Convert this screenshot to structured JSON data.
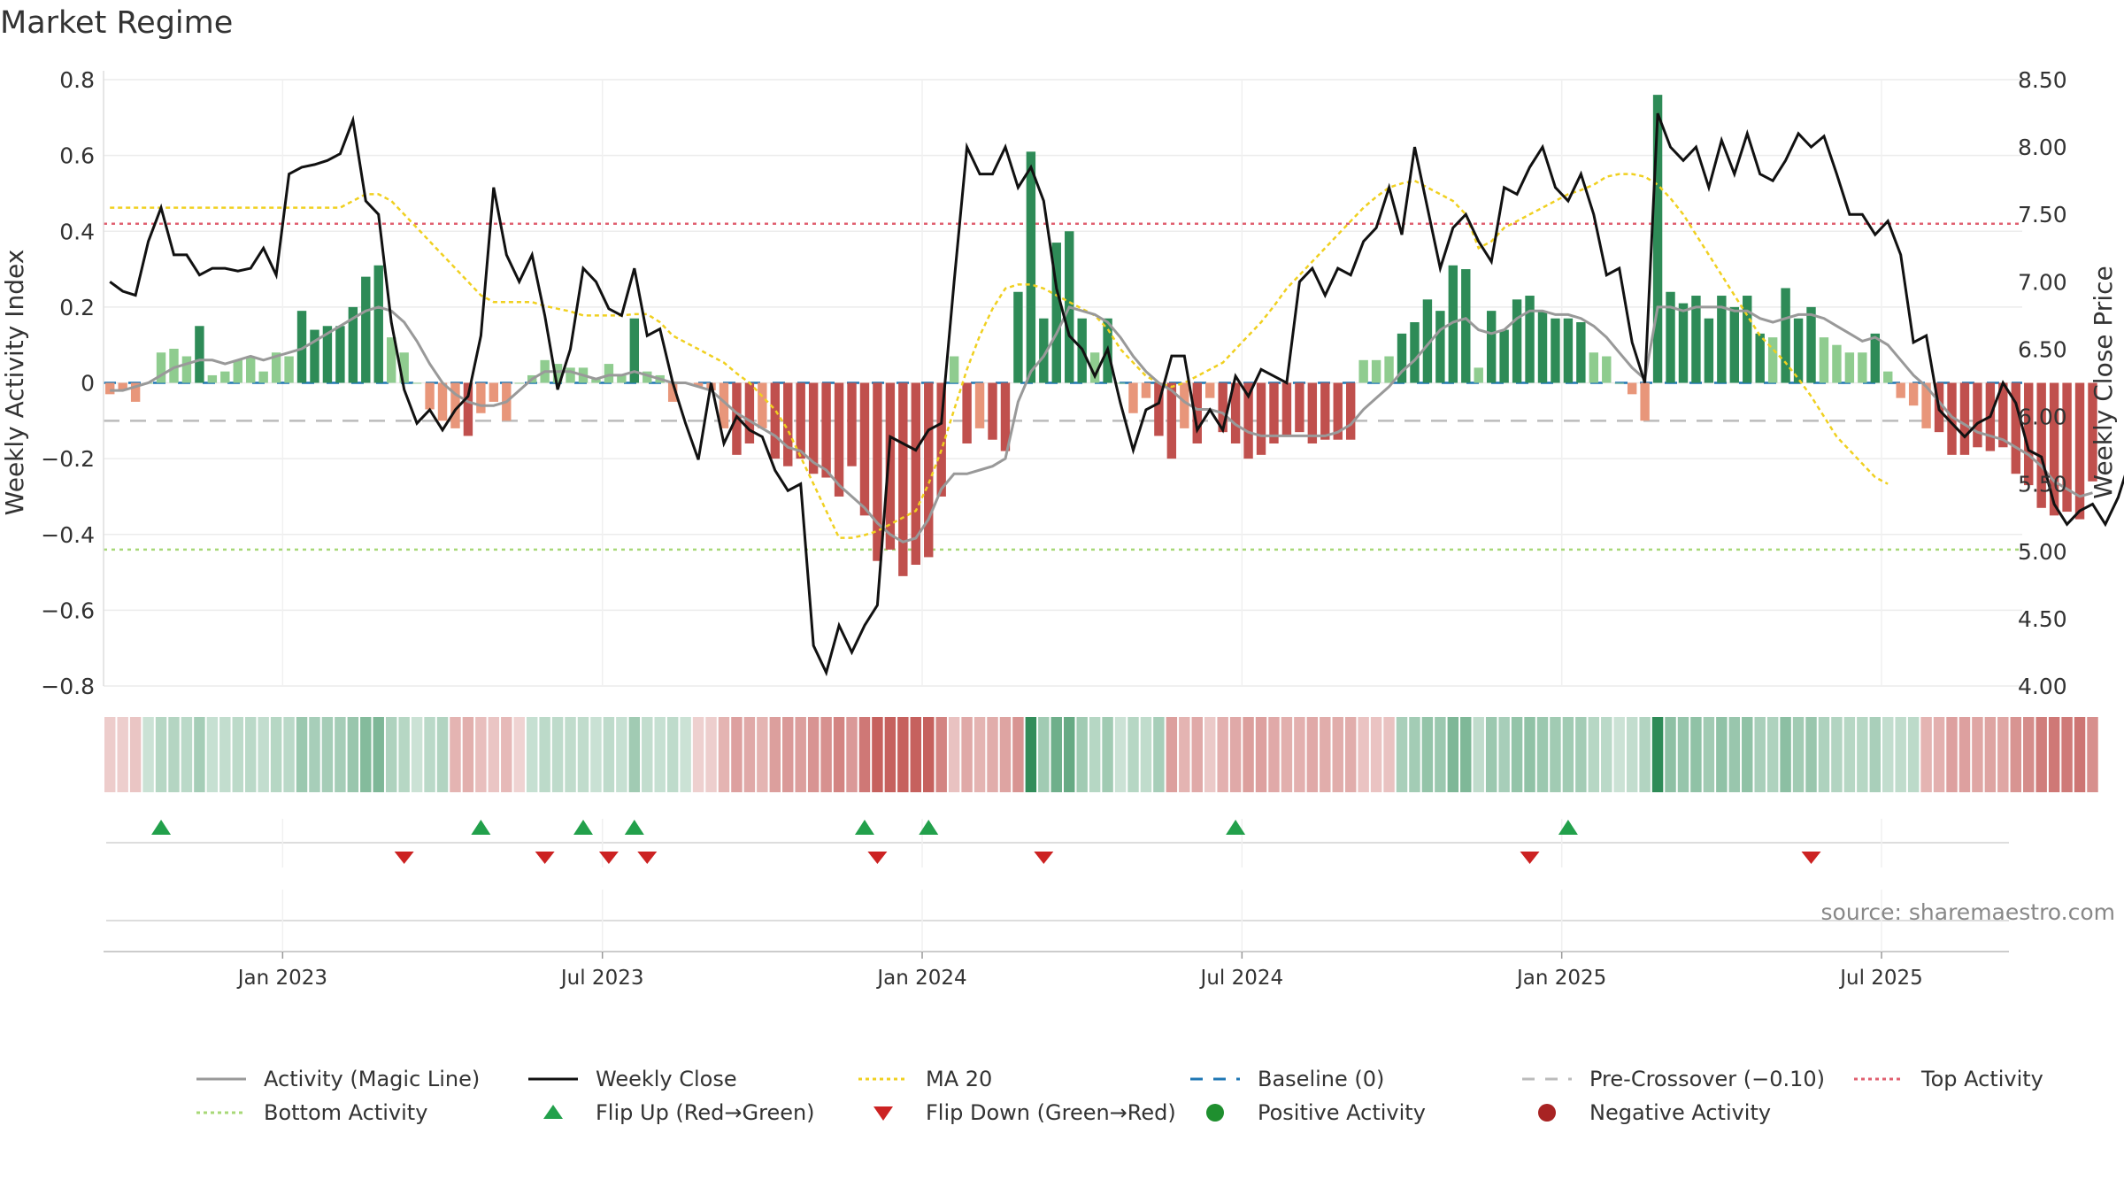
{
  "title": "Market Regime",
  "source": "source: sharemaestro.com",
  "colors": {
    "pos_dark": "#2e8b57",
    "pos_light": "#8fcc8f",
    "neg_dark": "#c0504d",
    "neg_light": "#e8967a",
    "close": "#111111",
    "magic": "#999999",
    "ma": "#f0d020",
    "baseline": "#1f77b4",
    "precross": "#bbbbbb",
    "top": "#e06070",
    "bottom": "#a8d878",
    "flip_up": "#22a04b",
    "flip_down": "#cc2222"
  },
  "legend": [
    {
      "label": "Activity (Magic Line)",
      "kind": "solid-gray",
      "icon": "line-icon"
    },
    {
      "label": "Weekly Close",
      "kind": "solid-black",
      "icon": "line-icon"
    },
    {
      "label": "MA 20",
      "kind": "dotted-yellow",
      "icon": "line-icon"
    },
    {
      "label": "Baseline (0)",
      "kind": "dashed-blue",
      "icon": "line-icon"
    },
    {
      "label": "Pre-Crossover (−0.10)",
      "kind": "dashed-gray",
      "icon": "line-icon"
    },
    {
      "label": "Top Activity",
      "kind": "dotted-red",
      "icon": "line-icon"
    },
    {
      "label": "Bottom Activity",
      "kind": "dotted-green",
      "icon": "line-icon"
    },
    {
      "label": "Flip Up (Red→Green)",
      "kind": "tri-up",
      "icon": "triangle-up-icon"
    },
    {
      "label": "Flip Down (Green→Red)",
      "kind": "tri-down",
      "icon": "triangle-down-icon"
    },
    {
      "label": "Positive Activity",
      "kind": "dot-green",
      "icon": "circle-icon"
    },
    {
      "label": "Negative Activity",
      "kind": "dot-red",
      "icon": "circle-icon"
    }
  ],
  "chart_data": {
    "type": "bar",
    "title": "Market Regime",
    "ylabel_left": "Weekly Activity Index",
    "ylabel_right": "Weekly Close Price",
    "y_left_range": [
      -0.8,
      0.8
    ],
    "y_right_range": [
      4.0,
      8.5
    ],
    "y_left_ticks": [
      "−0.8",
      "−0.6",
      "−0.4",
      "−0.2",
      "0",
      "0.2",
      "0.4",
      "0.6",
      "0.8"
    ],
    "y_right_ticks": [
      "4.00",
      "4.50",
      "5.00",
      "5.50",
      "6.00",
      "6.50",
      "7.00",
      "7.50",
      "8.00",
      "8.50"
    ],
    "x_ticks": [
      "Jan 2023",
      "Jul 2023",
      "Jan 2024",
      "Jul 2024",
      "Jan 2025",
      "Jul 2025"
    ],
    "x_range_weeks": [
      0,
      150
    ],
    "x_tick_weeks": [
      14,
      39,
      64,
      89,
      114,
      139
    ],
    "grid": true,
    "reference_lines": {
      "baseline": 0,
      "pre_crossover": -0.1,
      "top_activity": 0.42,
      "bottom_activity": -0.44
    },
    "activity_index": [
      -0.03,
      -0.02,
      -0.05,
      0,
      0.08,
      0.09,
      0.07,
      0.15,
      0.02,
      0.03,
      0.06,
      0.07,
      0.03,
      0.08,
      0.07,
      0.19,
      0.14,
      0.15,
      0.15,
      0.2,
      0.28,
      0.31,
      0.12,
      0.08,
      0,
      -0.07,
      -0.1,
      -0.12,
      -0.14,
      -0.08,
      -0.05,
      -0.1,
      0,
      0.02,
      0.06,
      0.05,
      0.04,
      0.04,
      0.01,
      0.05,
      0.02,
      0.17,
      0.03,
      0.02,
      -0.05,
      0,
      -0.01,
      -0.02,
      -0.12,
      -0.19,
      -0.16,
      -0.12,
      -0.2,
      -0.22,
      -0.2,
      -0.24,
      -0.25,
      -0.3,
      -0.22,
      -0.35,
      -0.47,
      -0.44,
      -0.51,
      -0.48,
      -0.46,
      -0.3,
      0.07,
      -0.16,
      -0.12,
      -0.15,
      -0.18,
      0.24,
      0.61,
      0.17,
      0.37,
      0.4,
      0.17,
      0.08,
      0.17,
      0,
      -0.08,
      -0.04,
      -0.14,
      -0.2,
      -0.12,
      -0.16,
      -0.04,
      -0.13,
      -0.16,
      -0.2,
      -0.19,
      -0.16,
      -0.14,
      -0.13,
      -0.16,
      -0.15,
      -0.15,
      -0.15,
      0.06,
      0.06,
      0.07,
      0.13,
      0.16,
      0.22,
      0.19,
      0.31,
      0.3,
      0.04,
      0.19,
      0.14,
      0.22,
      0.23,
      0.19,
      0.17,
      0.17,
      0.16,
      0.08,
      0.07,
      0,
      -0.03,
      -0.1,
      0.76,
      0.24,
      0.21,
      0.23,
      0.17,
      0.23,
      0.2,
      0.23,
      0.13,
      0.12,
      0.25,
      0.17,
      0.2,
      0.12,
      0.1,
      0.08,
      0.08,
      0.13,
      0.03,
      -0.04,
      -0.06,
      -0.12,
      -0.13,
      -0.19,
      -0.19,
      -0.17,
      -0.18,
      -0.17,
      -0.24,
      -0.27,
      -0.33,
      -0.35,
      -0.34,
      -0.36,
      -0.26
    ],
    "weekly_close": [
      7,
      6.93,
      6.9,
      7.3,
      7.55,
      7.2,
      7.2,
      7.05,
      7.1,
      7.1,
      7.08,
      7.1,
      7.25,
      7.05,
      7.8,
      7.85,
      7.87,
      7.9,
      7.95,
      8.2,
      7.6,
      7.5,
      6.7,
      6.2,
      5.95,
      6.05,
      5.9,
      6.05,
      6.15,
      6.6,
      7.7,
      7.2,
      7.0,
      7.2,
      6.75,
      6.2,
      6.5,
      7.1,
      7.0,
      6.8,
      6.75,
      7.1,
      6.6,
      6.65,
      6.25,
      5.95,
      5.68,
      6.25,
      5.8,
      6.0,
      5.9,
      5.85,
      5.6,
      5.45,
      5.5,
      4.3,
      4.1,
      4.45,
      4.25,
      4.45,
      4.6,
      5.85,
      5.8,
      5.75,
      5.9,
      5.95,
      7.0,
      8.0,
      7.8,
      7.8,
      8.0,
      7.7,
      7.85,
      7.6,
      6.95,
      6.6,
      6.5,
      6.3,
      6.5,
      6.1,
      5.75,
      6.05,
      6.1,
      6.45,
      6.45,
      5.9,
      6.05,
      5.9,
      6.3,
      6.15,
      6.35,
      6.3,
      6.25,
      7.0,
      7.1,
      6.9,
      7.1,
      7.05,
      7.3,
      7.4,
      7.7,
      7.35,
      8.0,
      7.55,
      7.1,
      7.4,
      7.5,
      7.3,
      7.15,
      7.7,
      7.65,
      7.85,
      8.0,
      7.7,
      7.6,
      7.8,
      7.5,
      7.05,
      7.1,
      6.55,
      6.25,
      8.25,
      8.0,
      7.9,
      8.0,
      7.7,
      8.05,
      7.8,
      8.1,
      7.8,
      7.75,
      7.9,
      8.1,
      8.0,
      8.08,
      7.8,
      7.5,
      7.5,
      7.35,
      7.45,
      7.2,
      6.55,
      6.6,
      6.05,
      5.95,
      5.85,
      5.95,
      6.0,
      6.25,
      6.1,
      5.75,
      5.7,
      5.35,
      5.2,
      5.3,
      5.35,
      5.2,
      5.4,
      5.7
    ],
    "magic_line": [
      -0.02,
      -0.02,
      -0.01,
      0,
      0.02,
      0.04,
      0.05,
      0.06,
      0.06,
      0.05,
      0.06,
      0.07,
      0.06,
      0.07,
      0.08,
      0.09,
      0.11,
      0.13,
      0.15,
      0.17,
      0.19,
      0.2,
      0.19,
      0.16,
      0.11,
      0.05,
      0,
      -0.03,
      -0.05,
      -0.06,
      -0.06,
      -0.05,
      -0.02,
      0.01,
      0.03,
      0.03,
      0.03,
      0.02,
      0.01,
      0.02,
      0.02,
      0.03,
      0.02,
      0.01,
      0,
      0,
      -0.01,
      -0.02,
      -0.05,
      -0.08,
      -0.1,
      -0.12,
      -0.14,
      -0.17,
      -0.18,
      -0.21,
      -0.23,
      -0.27,
      -0.3,
      -0.33,
      -0.37,
      -0.4,
      -0.42,
      -0.41,
      -0.36,
      -0.28,
      -0.24,
      -0.24,
      -0.23,
      -0.22,
      -0.2,
      -0.05,
      0.03,
      0.07,
      0.13,
      0.2,
      0.19,
      0.18,
      0.16,
      0.12,
      0.07,
      0.03,
      0,
      -0.02,
      -0.05,
      -0.07,
      -0.07,
      -0.08,
      -0.11,
      -0.13,
      -0.14,
      -0.14,
      -0.14,
      -0.14,
      -0.14,
      -0.14,
      -0.13,
      -0.11,
      -0.07,
      -0.04,
      -0.01,
      0.03,
      0.06,
      0.1,
      0.14,
      0.16,
      0.17,
      0.14,
      0.13,
      0.14,
      0.17,
      0.19,
      0.19,
      0.18,
      0.18,
      0.17,
      0.15,
      0.12,
      0.08,
      0.04,
      0.01,
      0.2,
      0.2,
      0.19,
      0.2,
      0.2,
      0.2,
      0.19,
      0.19,
      0.17,
      0.16,
      0.17,
      0.18,
      0.18,
      0.17,
      0.15,
      0.13,
      0.11,
      0.12,
      0.1,
      0.06,
      0.02,
      -0.01,
      -0.05,
      -0.09,
      -0.11,
      -0.13,
      -0.14,
      -0.15,
      -0.17,
      -0.19,
      -0.22,
      -0.26,
      -0.28,
      -0.3,
      -0.29
    ],
    "ma20": [
      7.55,
      7.55,
      7.55,
      7.55,
      7.55,
      7.55,
      7.55,
      7.55,
      7.55,
      7.55,
      7.55,
      7.55,
      7.55,
      7.55,
      7.55,
      7.55,
      7.55,
      7.55,
      7.55,
      7.6,
      7.65,
      7.65,
      7.6,
      7.5,
      7.4,
      7.3,
      7.2,
      7.1,
      7.0,
      6.9,
      6.85,
      6.85,
      6.85,
      6.85,
      6.82,
      6.8,
      6.78,
      6.75,
      6.75,
      6.75,
      6.75,
      6.76,
      6.76,
      6.7,
      6.6,
      6.55,
      6.5,
      6.45,
      6.4,
      6.32,
      6.25,
      6.15,
      6.05,
      5.9,
      5.7,
      5.5,
      5.3,
      5.1,
      5.1,
      5.12,
      5.15,
      5.2,
      5.25,
      5.3,
      5.5,
      5.75,
      6.05,
      6.35,
      6.6,
      6.8,
      6.95,
      6.98,
      6.98,
      6.95,
      6.9,
      6.85,
      6.8,
      6.75,
      6.65,
      6.5,
      6.4,
      6.3,
      6.25,
      6.22,
      6.25,
      6.3,
      6.35,
      6.4,
      6.5,
      6.6,
      6.7,
      6.82,
      6.95,
      7.05,
      7.15,
      7.25,
      7.35,
      7.45,
      7.55,
      7.63,
      7.7,
      7.73,
      7.75,
      7.7,
      7.65,
      7.6,
      7.5,
      7.25,
      7.3,
      7.4,
      7.45,
      7.5,
      7.55,
      7.6,
      7.65,
      7.68,
      7.72,
      7.78,
      7.8,
      7.8,
      7.78,
      7.72,
      7.62,
      7.5,
      7.35,
      7.2,
      7.05,
      6.9,
      6.75,
      6.6,
      6.5,
      6.4,
      6.28,
      6.15,
      6.0,
      5.85,
      5.75,
      5.65,
      5.55,
      5.5
    ],
    "flip_up_weeks": [
      4,
      29,
      37,
      41,
      59,
      64,
      88,
      114
    ],
    "flip_down_weeks": [
      23,
      34,
      39,
      42,
      60,
      73,
      111,
      133
    ]
  }
}
